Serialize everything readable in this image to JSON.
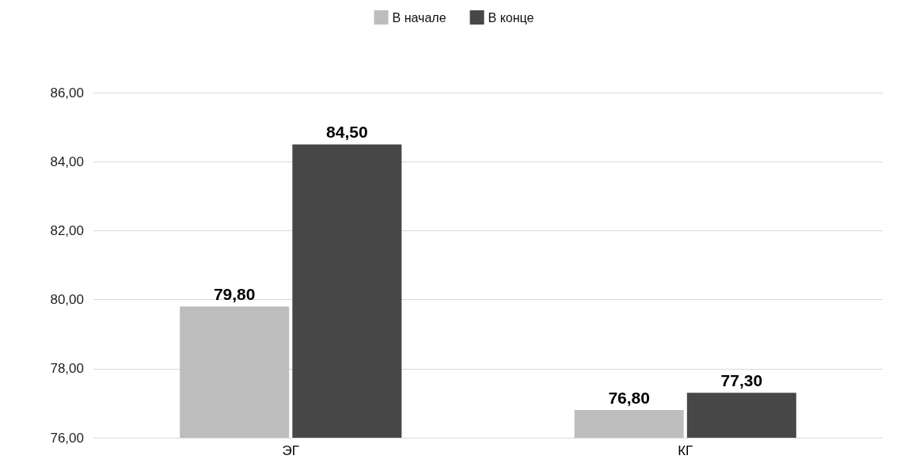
{
  "chart_data": {
    "type": "bar",
    "categories": [
      "ЭГ",
      "КГ"
    ],
    "series": [
      {
        "name": "В начале",
        "color": "#bdbdbd",
        "values": [
          79.8,
          76.8
        ],
        "value_labels": [
          "79,80",
          "76,80"
        ]
      },
      {
        "name": "В конце",
        "color": "#474747",
        "values": [
          84.5,
          77.3
        ],
        "value_labels": [
          "84,50",
          "77,30"
        ]
      }
    ],
    "ylim": [
      76,
      86
    ],
    "yticks": [
      {
        "value": 76,
        "label": "76,00"
      },
      {
        "value": 78,
        "label": "78,00"
      },
      {
        "value": 80,
        "label": "80,00"
      },
      {
        "value": 82,
        "label": "82,00"
      },
      {
        "value": 84,
        "label": "84,00"
      },
      {
        "value": 86,
        "label": "86,00"
      }
    ],
    "grid": "y",
    "legend": "top"
  }
}
